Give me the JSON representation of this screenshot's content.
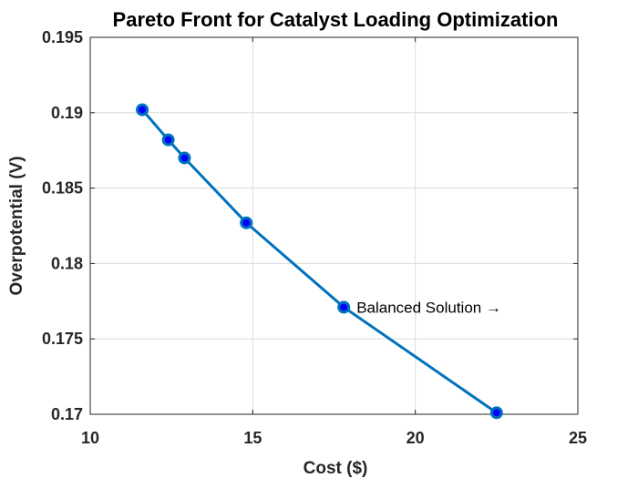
{
  "chart_data": {
    "type": "line",
    "title": "Pareto Front for Catalyst Loading Optimization",
    "xlabel": "Cost ($)",
    "ylabel": "Overpotential (V)",
    "xlim": [
      10,
      25
    ],
    "ylim": [
      0.17,
      0.195
    ],
    "xticks": [
      10,
      15,
      20,
      25
    ],
    "xtick_labels": [
      "10",
      "15",
      "20",
      "25"
    ],
    "yticks": [
      0.17,
      0.175,
      0.18,
      0.185,
      0.19,
      0.195
    ],
    "ytick_labels": [
      "0.17",
      "0.175",
      "0.18",
      "0.185",
      "0.19",
      "0.195"
    ],
    "grid": true,
    "series": [
      {
        "x": [
          11.6,
          12.4,
          12.9,
          14.8,
          17.8,
          22.5
        ],
        "y": [
          0.1902,
          0.1882,
          0.187,
          0.1827,
          0.1771,
          0.1701
        ]
      }
    ],
    "annotations": [
      {
        "text": "Balanced Solution →",
        "x": 17.8,
        "y": 0.1771
      }
    ],
    "colors": {
      "line": "#0072BD",
      "marker_fill": "#0000FF",
      "axes": "#262626",
      "grid": "#dcdcdc"
    }
  }
}
